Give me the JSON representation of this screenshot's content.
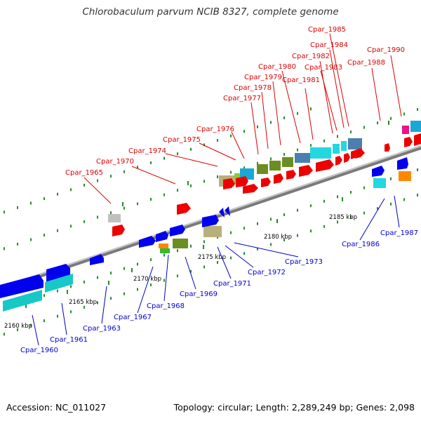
{
  "header": {
    "title": "Chlorobaculum parvum NCIB 8327, complete genome"
  },
  "footer": {
    "accession": "Accession: NC_011027",
    "summary": "Topology: circular; Length: 2,289,249 bp; Genes: 2,098"
  },
  "axis": {
    "tick_labels": [
      "2160 kbp",
      "2165 kbp",
      "2170 kbp",
      "2175 kbp",
      "2180 kbp",
      "2185 kbp"
    ]
  },
  "legend_colors": {
    "backbone": "#909090",
    "label_above": "#dd0000",
    "label_below": "#0000cc",
    "minor_tick": "#2a8a2a"
  },
  "genes_above": [
    "Cpar_1965",
    "Cpar_1970",
    "Cpar_1974",
    "Cpar_1975",
    "Cpar_1976",
    "Cpar_1977",
    "Cpar_1978",
    "Cpar_1979",
    "Cpar_1980",
    "Cpar_1981",
    "Cpar_1982",
    "Cpar_1983",
    "Cpar_1984",
    "Cpar_1985",
    "Cpar_1988",
    "Cpar_1990"
  ],
  "genes_below": [
    "Cpar_1960",
    "Cpar_1961",
    "Cpar_1963",
    "Cpar_1967",
    "Cpar_1968",
    "Cpar_1969",
    "Cpar_1971",
    "Cpar_1972",
    "Cpar_1973",
    "Cpar_1986",
    "Cpar_1987"
  ]
}
